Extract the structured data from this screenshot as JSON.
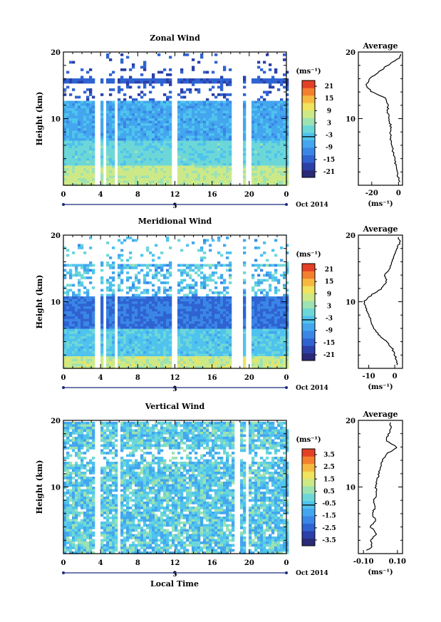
{
  "shared": {
    "x_ticks": [
      "0",
      "4",
      "8",
      "12",
      "16",
      "20",
      "0"
    ],
    "day_label": "5",
    "month_label": "Oct 2014",
    "height_ylabel": "Height (km)",
    "height_ticks": [
      "10",
      "20"
    ],
    "unit_label": "(ms⁻¹)",
    "xlabel": "Local Time",
    "avg_title": "Average"
  },
  "colors": {
    "scale": [
      "#2a2a78",
      "#2b3fa8",
      "#2f63d2",
      "#3a86e6",
      "#43a6ee",
      "#4fc3ee",
      "#6dd7d8",
      "#9de2b2",
      "#cde987",
      "#f0e35e",
      "#f7b840",
      "#f47f2e",
      "#e34026"
    ]
  },
  "chart_data": [
    {
      "type": "heatmap",
      "title": "Zonal Wind",
      "ylabel": "Height (km)",
      "xlabel": "",
      "xlim": [
        0,
        24
      ],
      "ylim": [
        0,
        20
      ],
      "colorbar_ticks": [
        "21",
        "15",
        "9",
        "3",
        "-3",
        "-9",
        "-15",
        "-21"
      ],
      "colorbar_range": [
        -24,
        24
      ],
      "profile": {
        "title": "Average",
        "xlabel": "(ms⁻¹)",
        "xticks": [
          "-20",
          "0"
        ],
        "xlim": [
          -30,
          3
        ],
        "heights": [
          0.5,
          1,
          2,
          3,
          4,
          5,
          6,
          7,
          8,
          9,
          10,
          11,
          12,
          13,
          14,
          15,
          16,
          17,
          18,
          19,
          19.8
        ],
        "values": [
          1,
          0,
          -1,
          -2,
          -3,
          -4,
          -5,
          -6,
          -6,
          -6,
          -7,
          -8,
          -8,
          -9,
          -20,
          -24,
          -22,
          -15,
          -8,
          0,
          2
        ]
      }
    },
    {
      "type": "heatmap",
      "title": "Meridional Wind",
      "ylabel": "Height (km)",
      "xlabel": "",
      "xlim": [
        0,
        24
      ],
      "ylim": [
        0,
        20
      ],
      "colorbar_ticks": [
        "21",
        "15",
        "9",
        "3",
        "-3",
        "-9",
        "-15",
        "-21"
      ],
      "colorbar_range": [
        -24,
        24
      ],
      "profile": {
        "title": "Average",
        "xlabel": "(ms⁻¹)",
        "xticks": [
          "-10",
          "0"
        ],
        "xlim": [
          -14,
          3
        ],
        "heights": [
          0.5,
          1,
          2,
          3,
          4,
          5,
          6,
          7,
          8,
          9,
          10,
          11,
          12,
          13,
          14,
          15,
          16,
          17,
          18,
          19,
          19.8
        ],
        "values": [
          1,
          1,
          0,
          -1,
          -3,
          -6,
          -8,
          -9,
          -10,
          -11,
          -12,
          -9,
          -5,
          -3,
          -4,
          -2,
          -1,
          0,
          1,
          2,
          1
        ]
      }
    },
    {
      "type": "heatmap",
      "title": "Vertical Wind",
      "ylabel": "Height (km)",
      "xlabel": "Local Time",
      "xlim": [
        0,
        24
      ],
      "ylim": [
        0,
        20
      ],
      "colorbar_ticks": [
        "3.5",
        "2.5",
        "1.5",
        "0.5",
        "-0.5",
        "-1.5",
        "-2.5",
        "-3.5"
      ],
      "colorbar_range": [
        -4,
        4
      ],
      "profile": {
        "title": "Average",
        "xlabel": "(ms⁻¹)",
        "xticks": [
          "-0.10",
          "0.10"
        ],
        "xlim": [
          -0.13,
          0.13
        ],
        "heights": [
          0.5,
          1,
          2,
          3,
          4,
          5,
          6,
          7,
          8,
          9,
          10,
          11,
          12,
          13,
          14,
          15,
          16,
          17,
          18,
          19,
          19.8
        ],
        "values": [
          -0.08,
          -0.05,
          -0.06,
          -0.02,
          -0.06,
          -0.03,
          -0.05,
          -0.03,
          -0.04,
          -0.02,
          -0.03,
          -0.02,
          -0.01,
          0.0,
          0.01,
          0.04,
          0.1,
          0.03,
          0.05,
          0.06,
          0.06
        ]
      }
    }
  ]
}
